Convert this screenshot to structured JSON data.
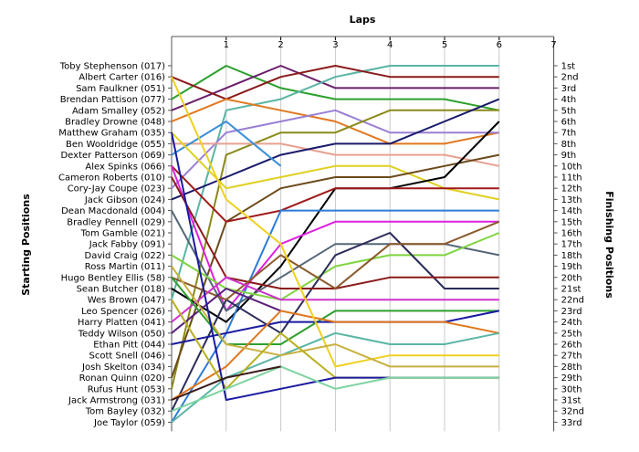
{
  "chart_data": {
    "type": "line",
    "title": "",
    "xlabel": "Laps",
    "ylabel_left": "Starting Positions",
    "ylabel_right": "Finishing Positions",
    "x_ticks": [
      "1",
      "2",
      "3",
      "4",
      "5",
      "6",
      "7"
    ],
    "starting_order": [
      "Toby Stephenson (017)",
      "Albert Carter (016)",
      "Sam Faulkner (051)",
      "Brendan Pattison (077)",
      "Adam Smalley (052)",
      "Bradley Drowne (048)",
      "Matthew Graham (035)",
      "Ben Wooldridge (055)",
      "Dexter Patterson (069)",
      "Alex Spinks (066)",
      "Cameron Roberts (010)",
      "Cory-Jay Coupe (023)",
      "Jack Gibson (024)",
      "Dean Macdonald (004)",
      "Bradley Pennell (029)",
      "Tom Gamble (021)",
      "Jack Fabby (091)",
      "David Craig (022)",
      "Ross Martin (011)",
      "Hugo Bentley Ellis (58)",
      "Sean Butcher (018)",
      "Wes Brown (047)",
      "Leo Spencer (026)",
      "Harry Platten (041)",
      "Teddy Wilson (050)",
      "Ethan Pitt (044)",
      "Scott Snell (046)",
      "Josh Skelton (034)",
      "Ronan Quinn (020)",
      "Rufus Hunt (053)",
      "Jack Armstrong (031)",
      "Tom Bayley (032)",
      "Joe Taylor (059)"
    ],
    "finishing_positions": [
      "1st",
      "2nd",
      "3rd",
      "4th",
      "5th",
      "6th",
      "7th",
      "8th",
      "9th",
      "10th",
      "11th",
      "12th",
      "13th",
      "14th",
      "15th",
      "16th",
      "17th",
      "18th",
      "19th",
      "20th",
      "21st",
      "22nd",
      "23rd",
      "24th",
      "25th",
      "26th",
      "27th",
      "28th",
      "29th",
      "30th",
      "31st",
      "32nd",
      "33rd"
    ],
    "series": [
      {
        "color": "#2ca02c",
        "positions": [
          4,
          1,
          3,
          4,
          4,
          4,
          5
        ]
      },
      {
        "color": "#6b1f6b",
        "positions": [
          5,
          3,
          1,
          3,
          3,
          3,
          3
        ]
      },
      {
        "color": "#5ab5a5",
        "positions": [
          22,
          5,
          4,
          2,
          1,
          1,
          1
        ]
      },
      {
        "color": "#8b1a1a",
        "positions": [
          2,
          4,
          2,
          1,
          2,
          2,
          2
        ]
      },
      {
        "color": "#e0781f",
        "positions": [
          6,
          4,
          5,
          6,
          8,
          8,
          7
        ]
      },
      {
        "color": "#9a7fd4",
        "positions": [
          12,
          7,
          6,
          5,
          7,
          7,
          7
        ]
      },
      {
        "color": "#8a8a1a",
        "positions": [
          30,
          9,
          7,
          7,
          5,
          5,
          5
        ]
      },
      {
        "color": "#e8a090",
        "positions": [
          8,
          8,
          8,
          9,
          9,
          9,
          10
        ]
      },
      {
        "color": "#1a1a6b",
        "positions": [
          13,
          11,
          9,
          8,
          8,
          6,
          4
        ]
      },
      {
        "color": "#3a8fd8",
        "positions": [
          9,
          6,
          10
        ]
      },
      {
        "color": "#e0d020",
        "positions": [
          7,
          12,
          11,
          10,
          10,
          12,
          13
        ]
      },
      {
        "color": "#6b4a1a",
        "positions": [
          29,
          15,
          12,
          11,
          11,
          10,
          9
        ]
      },
      {
        "color": "#000000",
        "positions": [
          21,
          24,
          19,
          12,
          12,
          11,
          6
        ]
      },
      {
        "color": "#a01a1a",
        "positions": [
          10,
          15,
          14,
          12,
          12,
          12,
          12
        ]
      },
      {
        "color": "#2e7ad8",
        "positions": [
          33,
          25,
          14,
          14,
          14,
          14,
          14
        ]
      },
      {
        "color": "#e020e0",
        "positions": [
          10,
          23,
          17,
          15,
          15,
          15,
          15
        ]
      },
      {
        "color": "#556677",
        "positions": [
          14,
          23,
          20,
          17,
          17,
          17,
          18
        ]
      },
      {
        "color": "#7fd43f",
        "positions": [
          18,
          21,
          22,
          19,
          18,
          18,
          16
        ]
      },
      {
        "color": "#2b2b5b",
        "positions": [
          32,
          22,
          25,
          18,
          16,
          21,
          21
        ]
      },
      {
        "color": "#8b1a1a",
        "positions": [
          11,
          20,
          21,
          21,
          20,
          20,
          20
        ]
      },
      {
        "color": "#8b5a2b",
        "positions": [
          20,
          22,
          18,
          21,
          17,
          17,
          15
        ]
      },
      {
        "color": "#cc33cc",
        "positions": [
          24,
          20,
          22,
          22,
          22,
          22,
          22
        ]
      },
      {
        "color": "#5a1f7a",
        "positions": [
          25,
          21,
          23
        ]
      },
      {
        "color": "#2ca02c",
        "positions": [
          20,
          26,
          26,
          23,
          23,
          23,
          23
        ]
      },
      {
        "color": "#1a1aa0",
        "positions": [
          26,
          25,
          24,
          24,
          24,
          24,
          23
        ]
      },
      {
        "color": "#e0781f",
        "positions": [
          31,
          28,
          23,
          24,
          24,
          24,
          25
        ]
      },
      {
        "color": "#5ab5a5",
        "positions": [
          33,
          29,
          27,
          25,
          26,
          26,
          25
        ]
      },
      {
        "color": "#f0d020",
        "positions": [
          2,
          13,
          17,
          28,
          27,
          27,
          27
        ]
      },
      {
        "color": "#c8b040",
        "positions": [
          19,
          26,
          27,
          26,
          28,
          28,
          28
        ]
      },
      {
        "color": "#b8b020",
        "positions": [
          22,
          30,
          25,
          29,
          29,
          29,
          29
        ]
      },
      {
        "color": "#1a1aa0",
        "positions": [
          7,
          31,
          30,
          29,
          29,
          29,
          29
        ]
      },
      {
        "color": "#7fd4a0",
        "positions": [
          32,
          30,
          28,
          30,
          29,
          29,
          29
        ]
      },
      {
        "color": "#3a1a1a",
        "positions": [
          31,
          29,
          28
        ]
      }
    ]
  }
}
